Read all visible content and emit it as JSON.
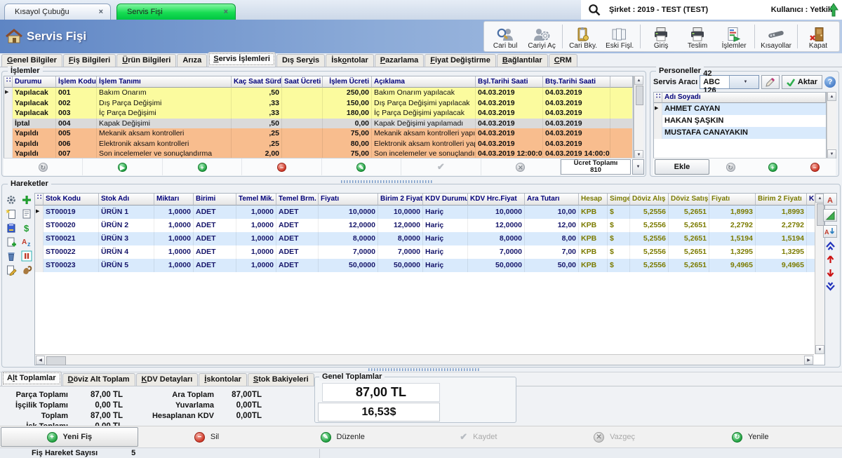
{
  "window": {
    "doc_tabs": [
      {
        "label": "Kısayol Çubuğu",
        "active": false
      },
      {
        "label": "Servis Fişi",
        "active": true
      }
    ],
    "company": "Şirket : 2019 - TEST (TEST)",
    "user": "Kullanıcı : Yetkili"
  },
  "header": {
    "title": "Servis Fişi",
    "toolbar": [
      {
        "label": "Cari bul",
        "icon": "person-search-icon"
      },
      {
        "label": "Cariyi Aç",
        "icon": "person-gear-icon"
      },
      {
        "label": "Cari Bky.",
        "icon": "clipboard-icon"
      },
      {
        "label": "Eski Fişl.",
        "icon": "pages-icon"
      },
      {
        "label": "Giriş",
        "icon": "printer-icon"
      },
      {
        "label": "Teslim",
        "icon": "printer-icon"
      },
      {
        "label": "İşlemler",
        "icon": "document-actions-icon"
      },
      {
        "label": "Kısayollar",
        "icon": "remote-icon"
      },
      {
        "label": "Kapat",
        "icon": "door-close-icon"
      }
    ]
  },
  "nav_tabs": {
    "active_index": 4,
    "items": [
      {
        "label": "Genel Bilgiler",
        "u": 0
      },
      {
        "label": "Fiş Bilgileri",
        "u": 0
      },
      {
        "label": "Ürün Bilgileri",
        "u": 0
      },
      {
        "label": "Arıza",
        "u": -1
      },
      {
        "label": "Servis İşlemleri",
        "u": 0
      },
      {
        "label": "Dış Servis",
        "u": 7
      },
      {
        "label": "İskontolar",
        "u": 3
      },
      {
        "label": "Pazarlama",
        "u": 0
      },
      {
        "label": "Fiyat Değiştirme",
        "u": 0
      },
      {
        "label": "Bağlantılar",
        "u": 0
      },
      {
        "label": "CRM",
        "u": 0
      }
    ]
  },
  "islemler": {
    "title": "İşlemler",
    "columns": [
      "Durumu",
      "İşlem Kodu",
      "İşlem Tanımı",
      "Kaç Saat Sürdü",
      "Saat Ücreti",
      "İşlem Ücreti",
      "Açıklama",
      "Bşl.Tarihi Saati",
      "Btş.Tarihi Saati"
    ],
    "status_colors": {
      "Yapılacak": "#fbfb9e",
      "İptal": "#dadada",
      "Yapıldı": "#f8bd8e"
    },
    "rows": [
      {
        "durumu": "Yapılacak",
        "islem_kodu": "001",
        "islem_tanimi": "Bakım Onarım",
        "kac_saat": ",50",
        "saat_ucreti": "",
        "islem_ucreti": "250,00",
        "aciklama": "Bakım Onarım yapılacak",
        "bsl": "04.03.2019",
        "bts": "04.03.2019",
        "selected": true
      },
      {
        "durumu": "Yapılacak",
        "islem_kodu": "002",
        "islem_tanimi": "Dış Parça Değişimi",
        "kac_saat": ",33",
        "saat_ucreti": "",
        "islem_ucreti": "150,00",
        "aciklama": "Dış Parça Değişimi yapılacak",
        "bsl": "04.03.2019",
        "bts": "04.03.2019"
      },
      {
        "durumu": "Yapılacak",
        "islem_kodu": "003",
        "islem_tanimi": "İç Parça Değişimi",
        "kac_saat": ",33",
        "saat_ucreti": "",
        "islem_ucreti": "180,00",
        "aciklama": "İç Parça Değişimi yapılacak",
        "bsl": "04.03.2019",
        "bts": "04.03.2019"
      },
      {
        "durumu": "İptal",
        "islem_kodu": "004",
        "islem_tanimi": "Kapak Değişimi",
        "kac_saat": ",50",
        "saat_ucreti": "",
        "islem_ucreti": "0,00",
        "aciklama": "Kapak Değişimi yapılamadı",
        "bsl": "04.03.2019",
        "bts": "04.03.2019"
      },
      {
        "durumu": "Yapıldı",
        "islem_kodu": "005",
        "islem_tanimi": "Mekanik aksam kontrolleri",
        "kac_saat": ",25",
        "saat_ucreti": "",
        "islem_ucreti": "75,00",
        "aciklama": "Mekanik aksam kontrolleri yapıldı",
        "bsl": "04.03.2019",
        "bts": "04.03.2019"
      },
      {
        "durumu": "Yapıldı",
        "islem_kodu": "006",
        "islem_tanimi": "Elektronik aksam kontrolleri",
        "kac_saat": ",25",
        "saat_ucreti": "",
        "islem_ucreti": "80,00",
        "aciklama": "Elektronik aksam kontrolleri yapıldı",
        "bsl": "04.03.2019",
        "bts": "04.03.2019"
      },
      {
        "durumu": "Yapıldı",
        "islem_kodu": "007",
        "islem_tanimi": "Son incelemeler ve sonuçlandırma",
        "kac_saat": "2,00",
        "saat_ucreti": "",
        "islem_ucreti": "75,00",
        "aciklama": "Son incelemeler ve sonuçlandırma yapıl",
        "bsl": "04.03.2019 12:00:00",
        "bts": "04.03.2019 14:00:00"
      }
    ],
    "ucret_toplami_label": "Ücret Toplamı",
    "ucret_toplami_value": "810"
  },
  "personeller": {
    "title": "Personeller",
    "servis_araci_label": "Servis Aracı",
    "servis_araci_value": "42 ABC 126",
    "aktar_label": "Aktar",
    "name_column": "Adı Soyadı",
    "people": [
      "AHMET CAYAN",
      "HAKAN ŞAŞKIN",
      "MUSTAFA CANAYAKIN"
    ],
    "selected_index": 0,
    "ekle_label": "Ekle"
  },
  "hareketler": {
    "title": "Hareketler",
    "columns": [
      "Stok Kodu",
      "Stok Adı",
      "Miktarı",
      "Birimi",
      "Temel Mik.",
      "Temel Brm.",
      "Fiyatı",
      "Birim 2 Fiyatı",
      "KDV Durumu",
      "KDV Hrc.Fiyat",
      "Ara Tutarı",
      "Hesap",
      "Simge",
      "Döviz Alış",
      "Döviz Satış",
      "Fiyatı",
      "Birim 2 Fiyatı",
      "KDV H"
    ],
    "stripe_color": "#d9eafc",
    "text_color": "#15156a",
    "currency_text_color": "#7b7b00",
    "rows": [
      [
        "ST00019",
        "ÜRÜN 1",
        "1,0000",
        "ADET",
        "1,0000",
        "ADET",
        "10,0000",
        "10,0000",
        "Hariç",
        "10,0000",
        "10,00",
        "KPB",
        "$",
        "5,2556",
        "5,2651",
        "1,8993",
        "1,8993",
        ""
      ],
      [
        "ST00020",
        "ÜRÜN 2",
        "1,0000",
        "ADET",
        "1,0000",
        "ADET",
        "12,0000",
        "12,0000",
        "Hariç",
        "12,0000",
        "12,00",
        "KPB",
        "$",
        "5,2556",
        "5,2651",
        "2,2792",
        "2,2792",
        ""
      ],
      [
        "ST00021",
        "ÜRÜN 3",
        "1,0000",
        "ADET",
        "1,0000",
        "ADET",
        "8,0000",
        "8,0000",
        "Hariç",
        "8,0000",
        "8,00",
        "KPB",
        "$",
        "5,2556",
        "5,2651",
        "1,5194",
        "1,5194",
        ""
      ],
      [
        "ST00022",
        "ÜRÜN 4",
        "1,0000",
        "ADET",
        "1,0000",
        "ADET",
        "7,0000",
        "7,0000",
        "Hariç",
        "7,0000",
        "7,00",
        "KPB",
        "$",
        "5,2556",
        "5,2651",
        "1,3295",
        "1,3295",
        ""
      ],
      [
        "ST00023",
        "ÜRÜN 5",
        "1,0000",
        "ADET",
        "1,0000",
        "ADET",
        "50,0000",
        "50,0000",
        "Hariç",
        "50,0000",
        "50,00",
        "KPB",
        "$",
        "5,2556",
        "5,2651",
        "9,4965",
        "9,4965",
        ""
      ]
    ]
  },
  "bottom": {
    "tabs": {
      "active_index": 0,
      "items": [
        {
          "label": "Alt Toplamlar",
          "u": 1
        },
        {
          "label": "Döviz Alt Toplam",
          "u": 0
        },
        {
          "label": "KDV Detayları",
          "u": 0
        },
        {
          "label": "İskontolar",
          "u": 0
        },
        {
          "label": "Stok Bakiyeleri",
          "u": 0
        }
      ]
    },
    "left_totals": [
      {
        "label": "Parça Toplamı",
        "value": "87,00 TL"
      },
      {
        "label": "İşçilik Toplamı",
        "value": "0,00 TL"
      },
      {
        "label": "Toplam",
        "value": "87,00 TL"
      },
      {
        "label": "İsk.Toplamı",
        "value": "0,00 TL"
      }
    ],
    "mid_totals": [
      {
        "label": "Ara Toplam",
        "value": "87,00TL"
      },
      {
        "label": "Yuvarlama",
        "value": "0,00TL"
      },
      {
        "label": "Hesaplanan KDV",
        "value": "0,00TL"
      }
    ],
    "genel": {
      "title": "Genel Toplamlar",
      "tl": "87,00 TL",
      "usd": "16,53$"
    }
  },
  "actions": {
    "items": [
      {
        "label": "Yeni Fiş",
        "state": "primary"
      },
      {
        "label": "Sil",
        "state": "normal"
      },
      {
        "label": "Düzenle",
        "state": "normal"
      },
      {
        "label": "Kaydet",
        "state": "disabled"
      },
      {
        "label": "Vazgeç",
        "state": "disabled"
      },
      {
        "label": "Yenile",
        "state": "normal"
      }
    ]
  },
  "statusbar": {
    "label": "Fiş Hareket Sayısı",
    "value": "5"
  }
}
